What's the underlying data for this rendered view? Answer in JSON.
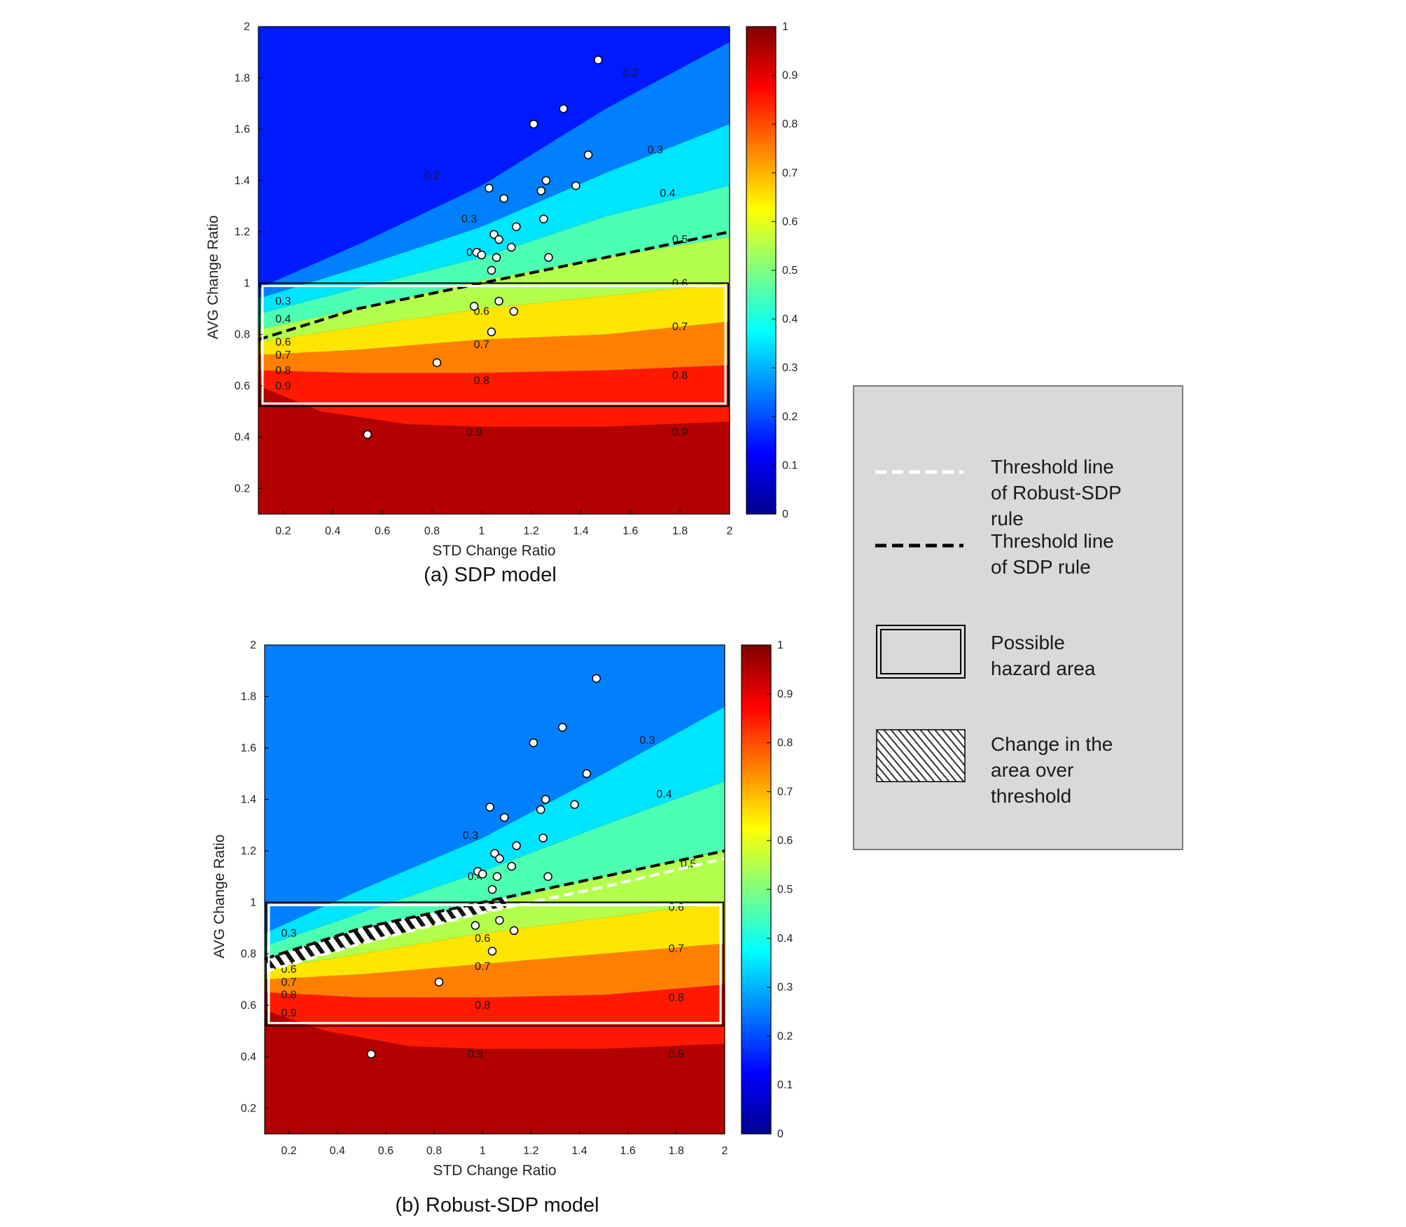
{
  "legend": {
    "items": [
      {
        "kind": "white-dash",
        "lines": [
          "Threshold line",
          "of Robust-SDP",
          "rule"
        ]
      },
      {
        "kind": "black-dash",
        "lines": [
          "Threshold line",
          "of SDP rule"
        ]
      },
      {
        "kind": "box",
        "lines": [
          "Possible",
          "hazard area"
        ]
      },
      {
        "kind": "hatch",
        "lines": [
          "Change in the",
          "area over",
          "threshold"
        ]
      }
    ]
  },
  "colorbar": {
    "ticks": [
      "0",
      "0.1",
      "0.2",
      "0.3",
      "0.4",
      "0.5",
      "0.6",
      "0.7",
      "0.8",
      "0.9",
      "1"
    ],
    "colors": [
      "#00008f",
      "#0000ff",
      "#0080ff",
      "#00ffff",
      "#80ff80",
      "#ffff00",
      "#ff8000",
      "#ff0000",
      "#800000"
    ]
  },
  "chart_data": [
    {
      "type": "contour",
      "caption": "(a) SDP model",
      "xlabel": "STD Change Ratio",
      "ylabel": "AVG Change Ratio",
      "xlim": [
        0.1,
        2.0
      ],
      "ylim": [
        0.1,
        2.0
      ],
      "xticks": [
        "0.2",
        "0.4",
        "0.6",
        "0.8",
        "1",
        "1.2",
        "1.4",
        "1.6",
        "1.8",
        "2"
      ],
      "yticks": [
        "0.2",
        "0.4",
        "0.6",
        "0.8",
        "1",
        "1.2",
        "1.4",
        "1.6",
        "1.8",
        "2"
      ],
      "contour_levels": [
        0.2,
        0.3,
        0.4,
        0.5,
        0.6,
        0.7,
        0.8,
        0.9
      ],
      "contour_lines": [
        {
          "level": 0.2,
          "points": [
            [
              0.1,
              0.98
            ],
            [
              0.5,
              1.15
            ],
            [
              1.0,
              1.38
            ],
            [
              1.5,
              1.68
            ],
            [
              2.0,
              1.94
            ]
          ]
        },
        {
          "level": 0.3,
          "points": [
            [
              0.1,
              0.94
            ],
            [
              0.5,
              1.06
            ],
            [
              1.0,
              1.22
            ],
            [
              1.5,
              1.43
            ],
            [
              2.0,
              1.62
            ]
          ]
        },
        {
          "level": 0.4,
          "points": [
            [
              0.1,
              0.88
            ],
            [
              0.5,
              0.98
            ],
            [
              1.0,
              1.1
            ],
            [
              1.5,
              1.26
            ],
            [
              2.0,
              1.38
            ]
          ]
        },
        {
          "level": 0.5,
          "points": [
            [
              0.1,
              0.82
            ],
            [
              0.5,
              0.9
            ],
            [
              1.0,
              1.01
            ],
            [
              1.5,
              1.1
            ],
            [
              2.0,
              1.18
            ]
          ]
        },
        {
          "level": 0.6,
          "points": [
            [
              0.1,
              0.77
            ],
            [
              0.5,
              0.83
            ],
            [
              1.0,
              0.9
            ],
            [
              1.5,
              0.95
            ],
            [
              2.0,
              1.0
            ]
          ]
        },
        {
          "level": 0.7,
          "points": [
            [
              0.1,
              0.72
            ],
            [
              0.5,
              0.74
            ],
            [
              1.0,
              0.78
            ],
            [
              1.5,
              0.8
            ],
            [
              2.0,
              0.85
            ]
          ]
        },
        {
          "level": 0.8,
          "points": [
            [
              0.1,
              0.66
            ],
            [
              0.5,
              0.65
            ],
            [
              1.0,
              0.65
            ],
            [
              1.5,
              0.66
            ],
            [
              2.0,
              0.68
            ]
          ]
        },
        {
          "level": 0.9,
          "points": [
            [
              0.1,
              0.6
            ],
            [
              0.35,
              0.5
            ],
            [
              0.7,
              0.45
            ],
            [
              1.0,
              0.44
            ],
            [
              1.5,
              0.44
            ],
            [
              2.0,
              0.46
            ]
          ]
        }
      ],
      "contour_labels": [
        {
          "text": "0.2",
          "x": 1.6,
          "y": 1.82
        },
        {
          "text": "0.2",
          "x": 0.8,
          "y": 1.42
        },
        {
          "text": "0.3",
          "x": 1.7,
          "y": 1.52
        },
        {
          "text": "0.3",
          "x": 0.95,
          "y": 1.25
        },
        {
          "text": "0.4",
          "x": 1.75,
          "y": 1.35
        },
        {
          "text": "0.4",
          "x": 0.97,
          "y": 1.12
        },
        {
          "text": "0.5",
          "x": 1.8,
          "y": 1.17
        },
        {
          "text": "0.6",
          "x": 1.8,
          "y": 1.0
        },
        {
          "text": "0.6",
          "x": 1.0,
          "y": 0.89
        },
        {
          "text": "0.7",
          "x": 1.8,
          "y": 0.83
        },
        {
          "text": "0.7",
          "x": 1.0,
          "y": 0.76
        },
        {
          "text": "0.8",
          "x": 1.8,
          "y": 0.64
        },
        {
          "text": "0.8",
          "x": 1.0,
          "y": 0.62
        },
        {
          "text": "0.9",
          "x": 1.8,
          "y": 0.42
        },
        {
          "text": "0.9",
          "x": 0.97,
          "y": 0.42
        },
        {
          "text": "0.9",
          "x": 0.2,
          "y": 0.6
        },
        {
          "text": "0.8",
          "x": 0.2,
          "y": 0.66
        },
        {
          "text": "0.7",
          "x": 0.2,
          "y": 0.72
        },
        {
          "text": "0.6",
          "x": 0.2,
          "y": 0.77
        },
        {
          "text": "0.4",
          "x": 0.2,
          "y": 0.86
        },
        {
          "text": "0.3",
          "x": 0.2,
          "y": 0.93
        }
      ],
      "threshold_lines": [
        {
          "name": "Threshold line of SDP rule",
          "style": "black-dash",
          "points": [
            [
              0.1,
              0.78
            ],
            [
              0.5,
              0.9
            ],
            [
              1.0,
              1.0
            ],
            [
              1.5,
              1.1
            ],
            [
              2.0,
              1.2
            ]
          ]
        }
      ],
      "hazard_box": {
        "x": [
          0.1,
          2.0
        ],
        "y": [
          0.52,
          1.0
        ]
      },
      "hatch_region": null,
      "scatter": {
        "x": [
          1.47,
          1.33,
          1.21,
          1.43,
          1.26,
          1.38,
          1.03,
          1.24,
          1.09,
          1.25,
          1.14,
          1.05,
          1.07,
          1.12,
          0.98,
          1.0,
          1.06,
          1.27,
          1.04,
          1.07,
          0.97,
          1.13,
          1.04,
          0.82,
          0.54
        ],
        "y": [
          1.87,
          1.68,
          1.62,
          1.5,
          1.4,
          1.38,
          1.37,
          1.36,
          1.33,
          1.25,
          1.22,
          1.19,
          1.17,
          1.14,
          1.12,
          1.11,
          1.1,
          1.1,
          1.05,
          0.93,
          0.91,
          0.89,
          0.81,
          0.69,
          0.41
        ]
      }
    },
    {
      "type": "contour",
      "caption": "(b) Robust-SDP model",
      "xlabel": "STD Change Ratio",
      "ylabel": "AVG Change Ratio",
      "xlim": [
        0.1,
        2.0
      ],
      "ylim": [
        0.1,
        2.0
      ],
      "xticks": [
        "0.2",
        "0.4",
        "0.6",
        "0.8",
        "1",
        "1.2",
        "1.4",
        "1.6",
        "1.8",
        "2"
      ],
      "yticks": [
        "0.2",
        "0.4",
        "0.6",
        "0.8",
        "1",
        "1.2",
        "1.4",
        "1.6",
        "1.8",
        "2"
      ],
      "contour_levels": [
        0.3,
        0.4,
        0.5,
        0.6,
        0.7,
        0.8,
        0.9
      ],
      "contour_lines": [
        {
          "level": 0.3,
          "points": [
            [
              0.1,
              0.88
            ],
            [
              0.5,
              1.05
            ],
            [
              1.0,
              1.25
            ],
            [
              1.5,
              1.5
            ],
            [
              2.0,
              1.76
            ]
          ]
        },
        {
          "level": 0.4,
          "points": [
            [
              0.1,
              0.83
            ],
            [
              0.5,
              0.96
            ],
            [
              1.0,
              1.12
            ],
            [
              1.5,
              1.3
            ],
            [
              2.0,
              1.47
            ]
          ]
        },
        {
          "level": 0.5,
          "points": [
            [
              0.1,
              0.78
            ],
            [
              0.5,
              0.88
            ],
            [
              1.0,
              0.99
            ],
            [
              1.5,
              1.1
            ],
            [
              2.0,
              1.2
            ]
          ]
        },
        {
          "level": 0.6,
          "points": [
            [
              0.1,
              0.74
            ],
            [
              0.5,
              0.8
            ],
            [
              1.0,
              0.88
            ],
            [
              1.5,
              0.94
            ],
            [
              2.0,
              1.0
            ]
          ]
        },
        {
          "level": 0.7,
          "points": [
            [
              0.1,
              0.7
            ],
            [
              0.5,
              0.72
            ],
            [
              1.0,
              0.76
            ],
            [
              1.5,
              0.8
            ],
            [
              2.0,
              0.84
            ]
          ]
        },
        {
          "level": 0.8,
          "points": [
            [
              0.1,
              0.65
            ],
            [
              0.5,
              0.63
            ],
            [
              1.0,
              0.63
            ],
            [
              1.5,
              0.64
            ],
            [
              2.0,
              0.68
            ]
          ]
        },
        {
          "level": 0.9,
          "points": [
            [
              0.1,
              0.58
            ],
            [
              0.35,
              0.5
            ],
            [
              0.7,
              0.44
            ],
            [
              1.0,
              0.43
            ],
            [
              1.5,
              0.43
            ],
            [
              2.0,
              0.45
            ]
          ]
        }
      ],
      "contour_labels": [
        {
          "text": "0.3",
          "x": 1.68,
          "y": 1.63
        },
        {
          "text": "0.3",
          "x": 0.95,
          "y": 1.26
        },
        {
          "text": "0.3",
          "x": 0.2,
          "y": 0.88
        },
        {
          "text": "0.4",
          "x": 1.75,
          "y": 1.42
        },
        {
          "text": "0.4",
          "x": 0.97,
          "y": 1.1
        },
        {
          "text": "0.5",
          "x": 1.85,
          "y": 1.15
        },
        {
          "text": "0.6",
          "x": 1.8,
          "y": 0.98
        },
        {
          "text": "0.6",
          "x": 1.0,
          "y": 0.86
        },
        {
          "text": "0.7",
          "x": 1.8,
          "y": 0.82
        },
        {
          "text": "0.7",
          "x": 1.0,
          "y": 0.75
        },
        {
          "text": "0.8",
          "x": 1.8,
          "y": 0.63
        },
        {
          "text": "0.8",
          "x": 1.0,
          "y": 0.6
        },
        {
          "text": "0.9",
          "x": 1.8,
          "y": 0.41
        },
        {
          "text": "0.9",
          "x": 0.97,
          "y": 0.41
        },
        {
          "text": "0.6",
          "x": 0.2,
          "y": 0.74
        },
        {
          "text": "0.7",
          "x": 0.2,
          "y": 0.69
        },
        {
          "text": "0.8",
          "x": 0.2,
          "y": 0.64
        },
        {
          "text": "0.9",
          "x": 0.2,
          "y": 0.57
        }
      ],
      "threshold_lines": [
        {
          "name": "Threshold line of SDP rule",
          "style": "black-dash",
          "points": [
            [
              0.1,
              0.78
            ],
            [
              0.5,
              0.9
            ],
            [
              1.0,
              1.0
            ],
            [
              1.5,
              1.1
            ],
            [
              2.0,
              1.2
            ]
          ]
        },
        {
          "name": "Threshold line of Robust-SDP rule",
          "style": "white-dash",
          "points": [
            [
              0.1,
              0.73
            ],
            [
              0.5,
              0.84
            ],
            [
              1.0,
              0.96
            ],
            [
              1.5,
              1.06
            ],
            [
              2.0,
              1.17
            ]
          ]
        }
      ],
      "hazard_box": {
        "x": [
          0.1,
          2.0
        ],
        "y": [
          0.52,
          1.0
        ]
      },
      "hatch_region": {
        "x_range": [
          0.1,
          1.1
        ],
        "between": [
          "Threshold line of Robust-SDP rule",
          "Threshold line of SDP rule"
        ]
      },
      "scatter": {
        "x": [
          1.47,
          1.33,
          1.21,
          1.43,
          1.26,
          1.38,
          1.03,
          1.24,
          1.09,
          1.25,
          1.14,
          1.05,
          1.07,
          1.12,
          0.98,
          1.0,
          1.06,
          1.27,
          1.04,
          1.07,
          0.97,
          1.13,
          1.04,
          0.82,
          0.54
        ],
        "y": [
          1.87,
          1.68,
          1.62,
          1.5,
          1.4,
          1.38,
          1.37,
          1.36,
          1.33,
          1.25,
          1.22,
          1.19,
          1.17,
          1.14,
          1.12,
          1.11,
          1.1,
          1.1,
          1.05,
          0.93,
          0.91,
          0.89,
          0.81,
          0.69,
          0.41
        ]
      }
    }
  ]
}
